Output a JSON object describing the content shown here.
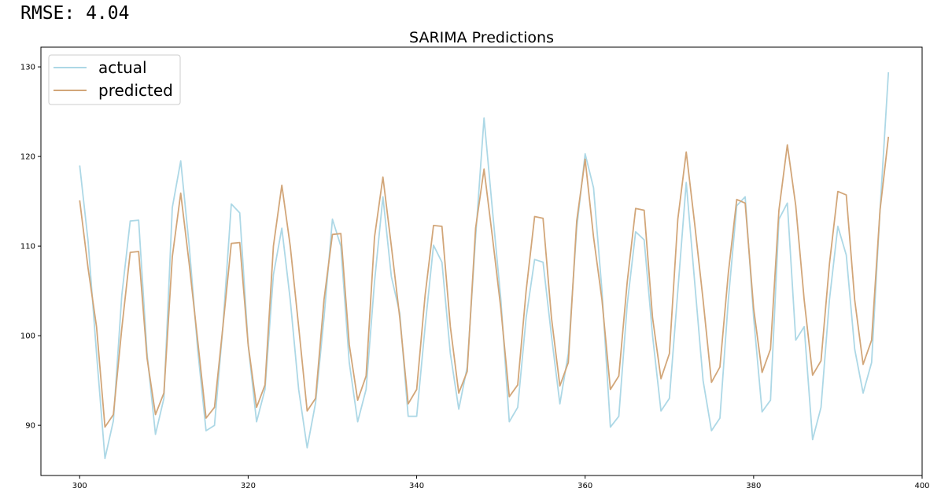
{
  "header": {
    "rmse_text": "RMSE: 4.04"
  },
  "chart_data": {
    "type": "line",
    "title": "SARIMA Predictions",
    "xlabel": "",
    "ylabel": "",
    "xlim": [
      295.4,
      400
    ],
    "ylim": [
      84.4,
      132.2
    ],
    "xticks": [
      300,
      320,
      340,
      360,
      380,
      400
    ],
    "yticks": [
      90,
      100,
      110,
      120,
      130
    ],
    "grid": false,
    "legend": {
      "position": "top-left"
    },
    "x": [
      300,
      301,
      302,
      303,
      304,
      305,
      306,
      307,
      308,
      309,
      310,
      311,
      312,
      313,
      314,
      315,
      316,
      317,
      318,
      319,
      320,
      321,
      322,
      323,
      324,
      325,
      326,
      327,
      328,
      329,
      330,
      331,
      332,
      333,
      334,
      335,
      336,
      337,
      338,
      339,
      340,
      341,
      342,
      343,
      344,
      345,
      346,
      347,
      348,
      349,
      350,
      351,
      352,
      353,
      354,
      355,
      356,
      357,
      358,
      359,
      360,
      361,
      362,
      363,
      364,
      365,
      366,
      367,
      368,
      369,
      370,
      371,
      372,
      373,
      374,
      375,
      376,
      377,
      378,
      379,
      380,
      381,
      382,
      383,
      384,
      385,
      386,
      387,
      388,
      389,
      390,
      391,
      392,
      393,
      394,
      395,
      396
    ],
    "series": [
      {
        "name": "actual",
        "color": "#add8e6",
        "values": [
          119.0,
          110.5,
          98.0,
          86.3,
          90.5,
          104.5,
          112.8,
          112.9,
          98.0,
          89.0,
          93.0,
          114.3,
          119.5,
          110.0,
          98.5,
          89.4,
          90.0,
          101.0,
          114.7,
          113.7,
          99.0,
          90.4,
          94.0,
          106.8,
          112.0,
          104.0,
          94.0,
          87.5,
          92.5,
          102.0,
          113.0,
          110.0,
          97.0,
          90.4,
          94.0,
          106.0,
          115.5,
          106.6,
          102.5,
          91.0,
          91.0,
          101.0,
          110.1,
          108.2,
          98.0,
          91.8,
          96.5,
          111.0,
          124.3,
          114.0,
          104.0,
          90.4,
          92.0,
          102.0,
          108.5,
          108.2,
          100.0,
          92.4,
          98.0,
          112.0,
          120.3,
          116.5,
          105.0,
          89.8,
          91.0,
          103.5,
          111.6,
          110.7,
          100.0,
          91.6,
          93.0,
          105.0,
          117.1,
          106.0,
          95.0,
          89.4,
          90.8,
          104.0,
          114.5,
          115.5,
          102.0,
          91.5,
          92.8,
          113.0,
          114.8,
          99.5,
          101.0,
          88.4,
          92.0,
          104.0,
          112.2,
          109.0,
          98.5,
          93.6,
          97.0,
          114.0,
          129.4
        ]
      },
      {
        "name": "predicted",
        "color": "#d2a679",
        "values": [
          115.1,
          107.5,
          101.0,
          89.8,
          91.2,
          100.8,
          109.3,
          109.4,
          97.5,
          91.2,
          93.6,
          108.8,
          115.9,
          108.0,
          99.5,
          90.8,
          92.0,
          101.0,
          110.3,
          110.4,
          99.0,
          92.0,
          94.5,
          110.0,
          116.8,
          110.0,
          101.0,
          91.6,
          93.0,
          104.0,
          111.3,
          111.4,
          99.0,
          92.8,
          95.5,
          111.0,
          117.7,
          110.0,
          102.0,
          92.4,
          94.0,
          104.5,
          112.3,
          112.2,
          101.0,
          93.6,
          96.0,
          112.0,
          118.6,
          111.0,
          103.0,
          93.2,
          94.5,
          105.0,
          113.3,
          113.1,
          102.0,
          94.4,
          97.0,
          112.8,
          119.7,
          111.0,
          104.0,
          94.0,
          95.5,
          106.0,
          114.2,
          114.0,
          102.0,
          95.2,
          98.0,
          113.0,
          120.5,
          112.5,
          104.0,
          94.8,
          96.5,
          107.0,
          115.2,
          114.8,
          103.0,
          95.9,
          98.5,
          114.0,
          121.3,
          114.5,
          104.0,
          95.6,
          97.2,
          108.0,
          116.1,
          115.7,
          104.0,
          96.8,
          99.5,
          114.0,
          122.2
        ]
      }
    ]
  }
}
